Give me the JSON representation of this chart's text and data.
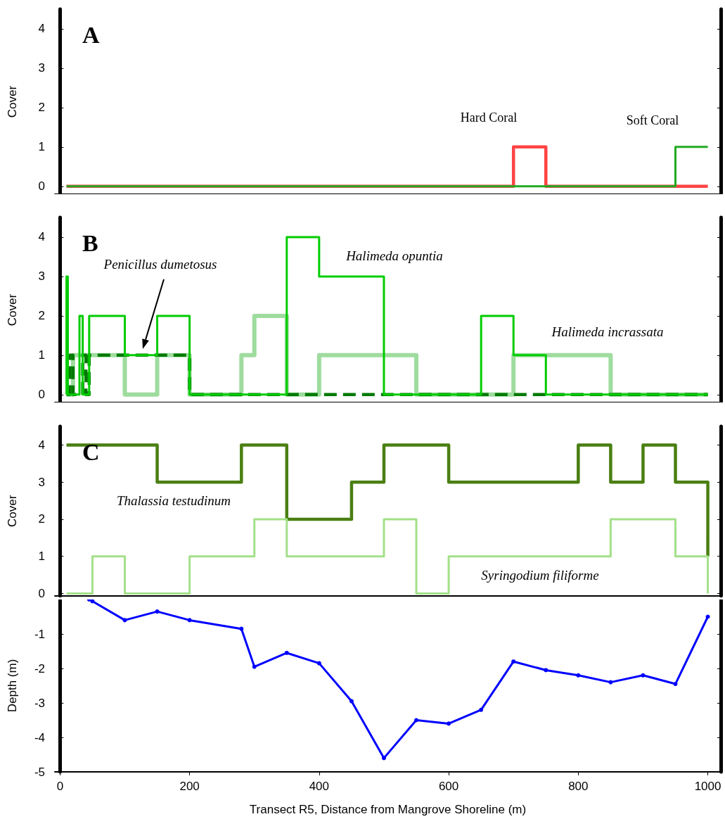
{
  "chart_data": [
    {
      "type": "step",
      "title": "A",
      "ylabel": "Cover",
      "xlim": [
        -8,
        1020
      ],
      "xticks": [
        0,
        200,
        400,
        600,
        800,
        1000
      ],
      "ylim": [
        -0.2,
        4.5
      ],
      "yticks": [
        0,
        1,
        2,
        3,
        4
      ],
      "tick_labels": "y",
      "annotations": [
        "Hard Coral",
        "Soft Coral"
      ],
      "series": [
        {
          "color": "#ff4444",
          "x": [
            10,
            700,
            750,
            1000
          ],
          "values": [
            0,
            0,
            1,
            0
          ]
        },
        {
          "color": "#22aa22",
          "x": [
            10,
            950,
            1000
          ],
          "values": [
            0,
            0,
            1
          ]
        }
      ]
    },
    {
      "type": "step",
      "title": "B",
      "ylabel": "Cover",
      "xlim": [
        -8,
        1020
      ],
      "xticks": [
        0,
        200,
        400,
        600,
        800,
        1000
      ],
      "ylim": [
        -0.2,
        4.5
      ],
      "yticks": [
        0,
        1,
        2,
        3,
        4
      ],
      "tick_labels": "y",
      "annotations": [
        "Penicillus dumetosus",
        "Halimeda opuntia",
        "Halimeda incrassata"
      ],
      "series": [
        {
          "color": "#9edc9e",
          "x": [
            10,
            20,
            100,
            150,
            200,
            280,
            300,
            350,
            400,
            550,
            700,
            850,
            1000
          ],
          "values": [
            0,
            0,
            1,
            0,
            1,
            0,
            1,
            2,
            0,
            1,
            0,
            1,
            0
          ]
        },
        {
          "color": "#007a00",
          "line_style": "dashed",
          "x": [
            10,
            15,
            20,
            35,
            40,
            45,
            200,
            1000
          ],
          "values": [
            0,
            0,
            1,
            0,
            1,
            0,
            1,
            0
          ]
        },
        {
          "color": "#00cc00",
          "x": [
            10,
            10,
            12,
            30,
            35,
            45,
            100,
            150,
            200,
            350,
            400,
            500,
            650,
            700,
            750,
            1000
          ],
          "values": [
            0,
            3,
            3,
            0,
            2,
            0,
            2,
            1,
            2,
            0,
            4,
            3,
            0,
            2,
            1,
            0
          ]
        }
      ]
    },
    {
      "type": "step",
      "title": "C",
      "ylabel": "Cover",
      "xlim": [
        -8,
        1020
      ],
      "xticks": [
        0,
        200,
        400,
        600,
        800,
        1000
      ],
      "ylim": [
        -0.06,
        4.5
      ],
      "yticks": [
        0,
        1,
        2,
        3,
        4
      ],
      "tick_labels": "y",
      "annotations": [
        "Thalassia testudinum",
        "Syringodium filiforme"
      ],
      "series": [
        {
          "color": "#4a7f12",
          "x": [
            10,
            150,
            280,
            350,
            450,
            500,
            600,
            800,
            850,
            900,
            950,
            1000,
            1000
          ],
          "values": [
            4,
            4,
            3,
            4,
            2,
            3,
            4,
            3,
            4,
            3,
            4,
            3,
            1
          ]
        },
        {
          "color": "#a3e089",
          "x": [
            10,
            50,
            100,
            200,
            300,
            350,
            500,
            550,
            600,
            850,
            950,
            1000,
            1000
          ],
          "values": [
            0,
            0,
            1,
            0,
            1,
            2,
            1,
            2,
            0,
            1,
            2,
            1,
            0
          ]
        }
      ]
    },
    {
      "type": "line",
      "ylabel": "Depth (m)",
      "xlabel": "Transect R5, Distance from Mangrove Shoreline (m)",
      "xlim": [
        -8,
        1020
      ],
      "xticks": [
        0,
        200,
        400,
        600,
        800,
        1000
      ],
      "ylim": [
        -5,
        0
      ],
      "yticks": [
        -5,
        -4,
        -3,
        -2,
        -1
      ],
      "marker": "circle",
      "series": [
        {
          "color": "#0000ff",
          "x": [
            45,
            50,
            100,
            150,
            200,
            280,
            300,
            350,
            400,
            450,
            500,
            550,
            600,
            650,
            700,
            750,
            800,
            850,
            900,
            950,
            1000
          ],
          "values": [
            0,
            -0.05,
            -0.6,
            -0.35,
            -0.6,
            -0.85,
            -1.95,
            -1.55,
            -1.85,
            -2.95,
            -4.6,
            -3.5,
            -3.6,
            -3.2,
            -1.8,
            -2.05,
            -2.2,
            -2.4,
            -2.2,
            -2.45,
            -0.5
          ]
        }
      ]
    }
  ]
}
